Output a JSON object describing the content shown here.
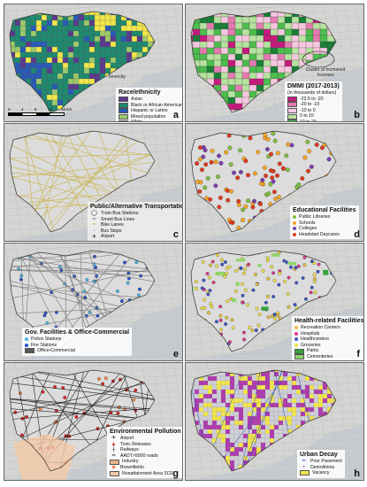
{
  "panels": [
    {
      "letter": "a",
      "title": "Race/ethnicity",
      "note": "Innercity",
      "items": [
        {
          "label": "Asian",
          "color": "#5b3a8e"
        },
        {
          "label": "Black or African American",
          "color": "#1f8a70"
        },
        {
          "label": "Hispanic or Latino",
          "color": "#2a5ab8"
        },
        {
          "label": "Mixed population",
          "color": "#9dc96b"
        },
        {
          "label": "White",
          "color": "#f2e64a"
        }
      ],
      "scale": {
        "ticks": [
          "0",
          "4",
          "8",
          "12",
          "16 km"
        ]
      }
    },
    {
      "letter": "b",
      "title": "DMMI (2017-2013)",
      "subtitle": "(in thousands of dollars)",
      "note": "Cluster of Increased Incomes",
      "items": [
        {
          "label": "-22.5 to -20",
          "color": "#c51b7d"
        },
        {
          "label": "-20 to -10",
          "color": "#e47bb0"
        },
        {
          "label": "-10 to 0",
          "color": "#f6c8df"
        },
        {
          "label": "0 to 10",
          "color": "#b6e3a0"
        },
        {
          "label": "10 to 20",
          "color": "#4dbd4d"
        },
        {
          "label": "20 - 27.6",
          "color": "#1a7f37"
        }
      ]
    },
    {
      "letter": "c",
      "title": "Public/Alternative Transportation",
      "items": [
        {
          "label": "Train-Bus Stations",
          "sym": "◯"
        },
        {
          "label": "Smart Bus Lines",
          "sym": "━",
          "color": "#666"
        },
        {
          "label": "Bike Lanes",
          "sym": "━",
          "color": "#c9b24a"
        },
        {
          "label": "Bus Stops",
          "sym": "·"
        },
        {
          "label": "Airport",
          "sym": "✈"
        }
      ]
    },
    {
      "letter": "d",
      "title": "Educational Facilities",
      "items": [
        {
          "label": "Public Libraries",
          "color": "#7fbf3f"
        },
        {
          "label": "Schools",
          "color": "#f5a623"
        },
        {
          "label": "Colleges",
          "color": "#7b3fb0"
        },
        {
          "label": "Headstart Daycares",
          "color": "#e03a1e"
        }
      ]
    },
    {
      "letter": "e",
      "title": "Gov. Facilities & Office-Commercial",
      "items": [
        {
          "label": "Police Stations",
          "color": "#49b8e8"
        },
        {
          "label": "Fire Stations",
          "color": "#2450c8"
        },
        {
          "label": "Office-Commercial",
          "color": "#555555",
          "box": true
        }
      ]
    },
    {
      "letter": "f",
      "title": "Health-related Facilities",
      "items": [
        {
          "label": "Recreation Centers",
          "color": "#e8c23a"
        },
        {
          "label": "Hospitals",
          "color": "#e0388a"
        },
        {
          "label": "Healthcenters",
          "color": "#3a57c4"
        },
        {
          "label": "Groceries",
          "color": "#f0e24a"
        },
        {
          "label": "Parks",
          "color": "#37a23c",
          "box": true
        },
        {
          "label": "Cementeries",
          "color": "#8fd66b",
          "box": true
        }
      ]
    },
    {
      "letter": "g",
      "title": "Environmental Pollution",
      "items": [
        {
          "label": "Airport",
          "sym": "✈"
        },
        {
          "label": "Toxic Releases",
          "sym": "▲",
          "color": "#d22"
        },
        {
          "label": "Railways",
          "sym": "┼"
        },
        {
          "label": "AADT>5000 roads",
          "sym": "━",
          "color": "#222"
        },
        {
          "label": "Industry",
          "color": "#e8b48a",
          "box": true
        },
        {
          "label": "Brownfields",
          "sym": "◆",
          "color": "#f08a4a"
        },
        {
          "label": "Nonattainment Area SO2",
          "color": "#f4c9a8",
          "box": true
        }
      ]
    },
    {
      "letter": "h",
      "title": "Urban Decay",
      "items": [
        {
          "label": "Poor Pavement",
          "sym": "━",
          "color": "#2a4db5"
        },
        {
          "label": "Demolitions",
          "sym": "•",
          "color": "#b03ab0"
        },
        {
          "label": "Vacancy",
          "color": "#f2e64a",
          "box": true
        }
      ]
    }
  ]
}
